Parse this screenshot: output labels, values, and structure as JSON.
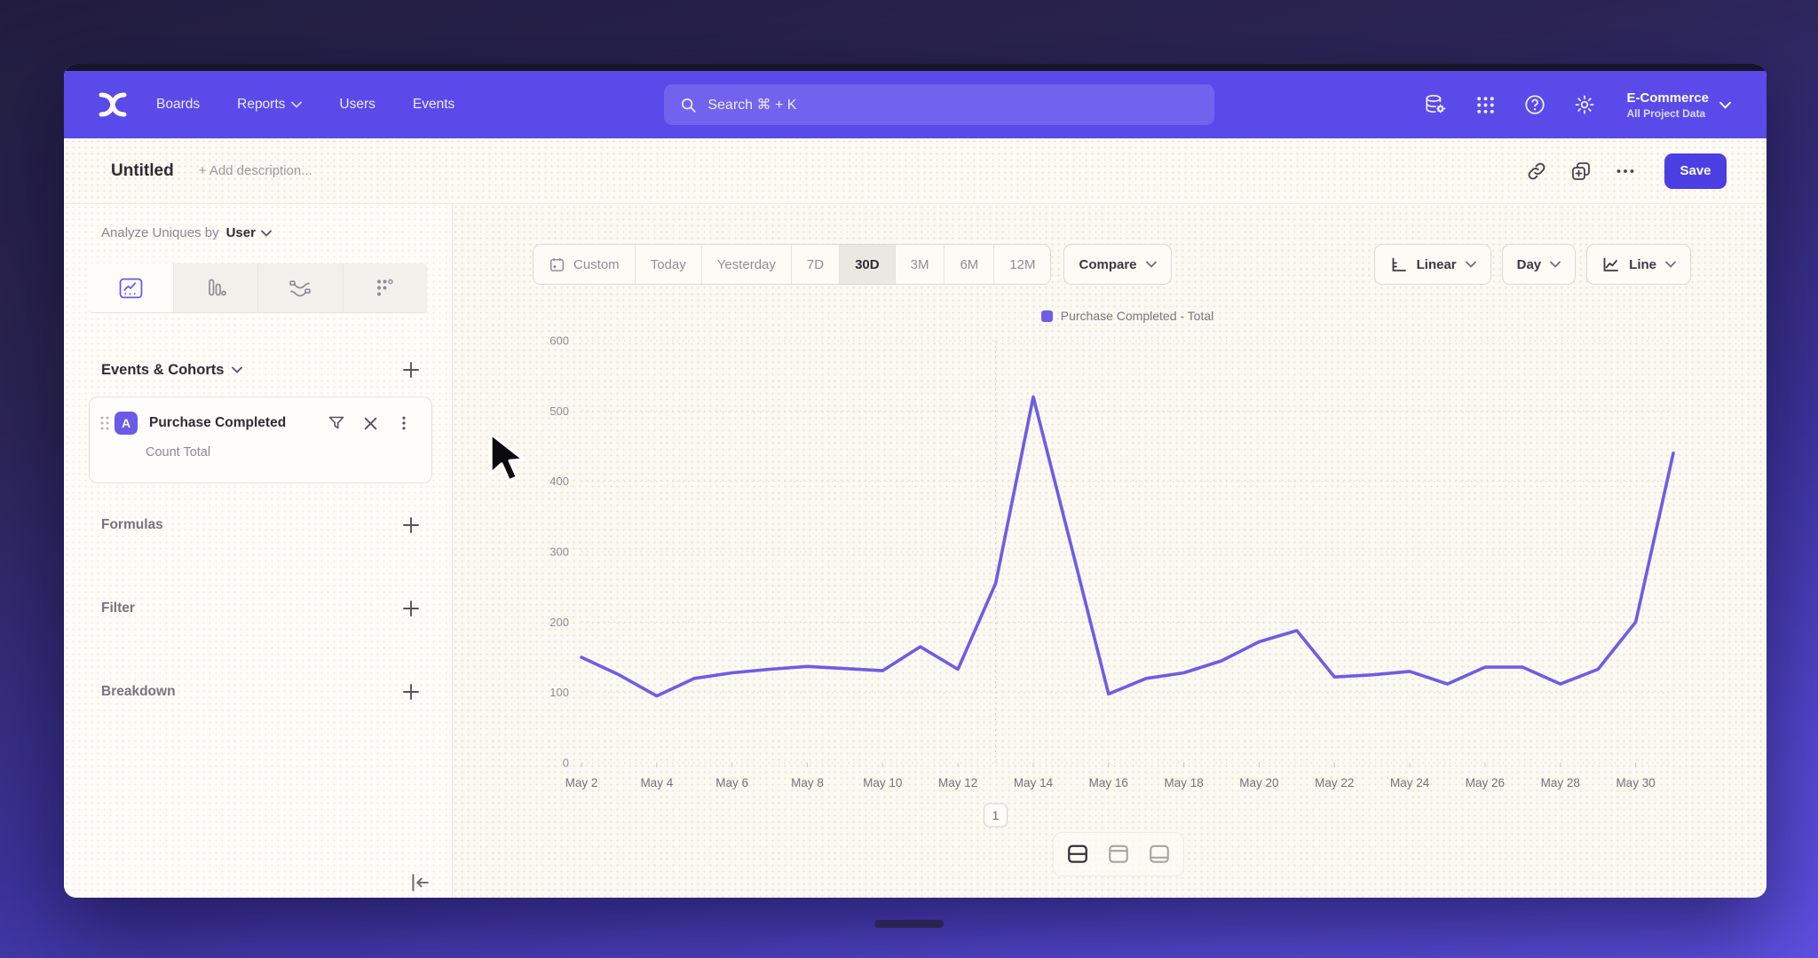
{
  "nav": {
    "items": [
      {
        "label": "Boards",
        "has_menu": false
      },
      {
        "label": "Reports",
        "has_menu": true
      },
      {
        "label": "Users",
        "has_menu": false
      },
      {
        "label": "Events",
        "has_menu": false
      }
    ],
    "search_placeholder": "Search  ⌘ + K",
    "project": {
      "name": "E-Commerce",
      "subtitle": "All Project Data"
    }
  },
  "header": {
    "title": "Untitled",
    "description_placeholder": "+ Add description...",
    "save_label": "Save"
  },
  "sidebar": {
    "analyze_prefix": "Analyze Uniques by",
    "analyze_value": "User",
    "events_heading": "Events & Cohorts",
    "event_card": {
      "badge": "A",
      "title": "Purchase Completed",
      "subtitle": "Count Total"
    },
    "sections": [
      {
        "label": "Formulas"
      },
      {
        "label": "Filter"
      },
      {
        "label": "Breakdown"
      }
    ]
  },
  "toolbar": {
    "ranges": [
      "Custom",
      "Today",
      "Yesterday",
      "7D",
      "30D",
      "3M",
      "6M",
      "12M"
    ],
    "selected_range": "30D",
    "compare_label": "Compare",
    "scale_label": "Linear",
    "interval_label": "Day",
    "chart_type_label": "Line"
  },
  "chart_data": {
    "type": "line",
    "title": "",
    "legend": [
      "Purchase Completed - Total"
    ],
    "legend_position": "top-center",
    "grid": "dotted-horizontal",
    "x": [
      "May 2",
      "May 3",
      "May 4",
      "May 5",
      "May 6",
      "May 7",
      "May 8",
      "May 9",
      "May 10",
      "May 11",
      "May 12",
      "May 13",
      "May 14",
      "May 15",
      "May 16",
      "May 17",
      "May 18",
      "May 19",
      "May 20",
      "May 21",
      "May 22",
      "May 23",
      "May 24",
      "May 25",
      "May 26",
      "May 27",
      "May 28",
      "May 29",
      "May 30",
      "May 31"
    ],
    "xtick_every": 2,
    "series": [
      {
        "name": "Purchase Completed - Total",
        "color": "#6e5ce6",
        "values": [
          150,
          125,
          95,
          120,
          128,
          133,
          137,
          134,
          131,
          165,
          133,
          255,
          520,
          310,
          98,
          120,
          128,
          145,
          172,
          188,
          122,
          125,
          130,
          112,
          136,
          136,
          112,
          133,
          200,
          440
        ]
      }
    ],
    "ylim": [
      0,
      600
    ],
    "yticks": [
      0,
      100,
      200,
      300,
      400,
      500,
      600
    ],
    "annotation": {
      "label": "1",
      "x": "May 13"
    }
  },
  "colors": {
    "nav_purple": "#5a4aea",
    "accent": "#4b3fe4",
    "line": "#6e5ce6"
  }
}
